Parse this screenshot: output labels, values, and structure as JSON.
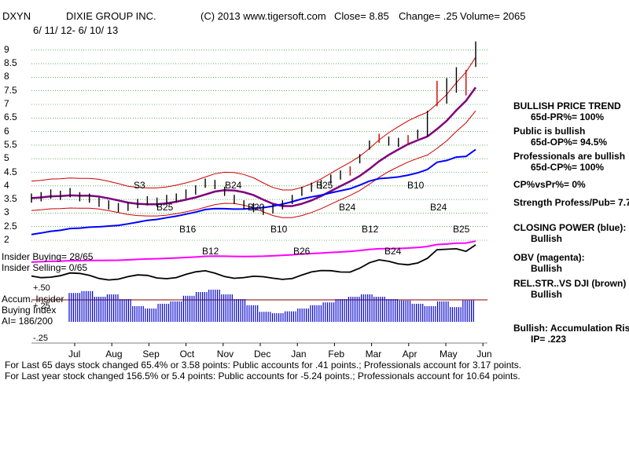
{
  "header": {
    "ticker": "DXYN",
    "company": "DIXIE GROUP INC.",
    "source": "(C) 2013 www.tigersoft.com",
    "close": "Close=  8.85",
    "change": "Change= .25",
    "volume": "Volume= 2065",
    "date_range": "6/ 11/ 12- 6/ 10/ 13"
  },
  "chart_data": {
    "type": "line",
    "title": "DIXIE GROUP INC.",
    "xlabel": "",
    "ylabel": "",
    "x_tick_labels": [
      "Jul",
      "Aug",
      "Sep",
      "Oct",
      "Nov",
      "Dec",
      "Jan",
      "Feb",
      "Mar",
      "Apr",
      "May",
      "Jun"
    ],
    "y_tick_labels": [
      "9",
      "8.5",
      "8",
      "7.5",
      "7",
      "6.5",
      "6",
      "5.5",
      "5",
      "4.5",
      "4",
      "3.5",
      "3",
      "2.5",
      "2"
    ],
    "ylim": [
      2,
      9.4
    ],
    "price_series": {
      "name": "Price",
      "values": [
        3.55,
        3.6,
        3.7,
        3.65,
        3.75,
        3.6,
        3.55,
        3.4,
        3.3,
        3.2,
        3.25,
        3.35,
        3.45,
        3.4,
        3.5,
        3.55,
        3.7,
        3.85,
        4.1,
        4.05,
        3.8,
        3.5,
        3.3,
        3.2,
        3.1,
        3.15,
        3.3,
        3.5,
        3.8,
        3.95,
        4.05,
        4.25,
        4.4,
        4.55,
        5.0,
        5.5,
        5.75,
        5.65,
        5.6,
        5.7,
        5.9,
        6.3,
        7.4,
        7.5,
        7.9,
        7.8,
        8.85
      ],
      "color": "#000000"
    },
    "overlay_lines": [
      {
        "name": "Upper band",
        "color": "#cc0000"
      },
      {
        "name": "Lower band",
        "color": "#cc0000"
      },
      {
        "name": "Moving average",
        "color": "#800080"
      },
      {
        "name": "Closing Power",
        "color": "#0000ff"
      },
      {
        "name": "OBV",
        "color": "#ff00ff"
      },
      {
        "name": "Rel. Strength vs DJI",
        "color": "#000000"
      }
    ],
    "signals": [
      "S3",
      "B25",
      "B16",
      "B12",
      "B24",
      "B20",
      "B10",
      "B26",
      "B25",
      "B24",
      "B12",
      "B24",
      "B10",
      "B24",
      "B25"
    ],
    "accumulation": {
      "y_tick_labels": [
        "+.50",
        "+.25",
        "-.25"
      ],
      "ylim": [
        -0.3,
        0.6
      ],
      "values": [
        0.38,
        0.42,
        0.3,
        0.35,
        0.25,
        0.1,
        0.05,
        0.15,
        0.2,
        0.32,
        0.4,
        0.45,
        0.35,
        0.25,
        0.12,
        -0.02,
        -0.05,
        -0.01,
        0.05,
        0.12,
        0.18,
        0.25,
        0.3,
        0.35,
        0.3,
        0.25,
        0.22,
        0.15,
        0.1,
        0.2,
        0.08,
        0.223
      ]
    }
  },
  "insider": {
    "buying": "Insider Buying= 28/65",
    "selling": "Insider Selling= 0/65",
    "ai_label": "Accum. Insider Buying Index",
    "ai": "AI= 186/200"
  },
  "side_panel": [
    {
      "title": "BULLISH PRICE TREND",
      "detail": "65d-PR%= 100%"
    },
    {
      "title": "Public is bullish",
      "detail": "65d-OP%= 94.5%"
    },
    {
      "title": "Professionals are bullish",
      "detail": "65d-CP%= 100%"
    },
    {
      "title": "CP%vsPr%=  0%",
      "detail": ""
    },
    {
      "title": "Strength Profess/Pub= 7.7",
      "detail": ""
    },
    {
      "title": "CLOSING POWER (blue):",
      "detail": "Bullish"
    },
    {
      "title": "OBV (magenta):",
      "detail": "Bullish"
    },
    {
      "title": "REL.STR..VS DJI (brown)",
      "detail": "Bullish"
    },
    {
      "title": "Bullish: Accumulation Rising",
      "detail": "IP=  .223"
    }
  ],
  "footer": {
    "line1": "For Last 65 days stock changed  65.4% or  3.58 points:  Public accounts for  .41 points.;  Professionals account for  3.17 points.",
    "line2": "For Last year stock changed  156.5% or  5.4 points:  Public accounts for -5.24 points.;  Professionals account for  10.64 points."
  }
}
